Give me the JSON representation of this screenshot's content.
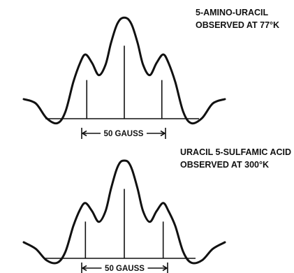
{
  "chart_data": [
    {
      "type": "line",
      "title": "5-AMINO-URACIL",
      "subtitle": "OBSERVED AT 77°K",
      "scale_label": "50 GAUSS",
      "scale_gauss": 50,
      "x_unit": "gauss",
      "series": [
        {
          "x": [
            -75,
            -66,
            -58,
            -50,
            -44,
            -38,
            -33,
            -29,
            -24,
            -19,
            -14,
            -10,
            -6,
            -3,
            0,
            3,
            6,
            10,
            14,
            19,
            24,
            29,
            33,
            38,
            44,
            50,
            58,
            66,
            75
          ],
          "y": [
            0,
            -5,
            -22,
            -28,
            -15,
            20,
            42,
            52,
            42,
            28,
            40,
            65,
            85,
            93,
            95,
            93,
            85,
            65,
            40,
            28,
            42,
            52,
            42,
            20,
            -15,
            -28,
            -22,
            -5,
            0
          ]
        }
      ],
      "line_positions_gauss": [
        -28,
        0,
        28
      ],
      "line_heights": [
        45,
        85,
        45
      ]
    },
    {
      "type": "line",
      "title": "URACIL 5-SULFAMIC ACID",
      "subtitle": "OBSERVED AT 300°K",
      "scale_label": "50 GAUSS",
      "scale_gauss": 50,
      "x_unit": "gauss",
      "series": [
        {
          "x": [
            -75,
            -66,
            -58,
            -50,
            -44,
            -38,
            -33,
            -29,
            -24,
            -19,
            -14,
            -10,
            -6,
            -3,
            0,
            3,
            6,
            10,
            14,
            19,
            24,
            29,
            33,
            38,
            44,
            50,
            58,
            66,
            75
          ],
          "y": [
            0,
            -8,
            -22,
            -25,
            -12,
            20,
            40,
            48,
            38,
            25,
            38,
            65,
            88,
            98,
            100,
            98,
            88,
            65,
            38,
            25,
            38,
            48,
            38,
            20,
            -12,
            -25,
            -22,
            -8,
            0
          ]
        }
      ],
      "line_positions_gauss": [
        -29,
        0,
        29
      ],
      "line_heights": [
        45,
        85,
        45
      ]
    }
  ]
}
